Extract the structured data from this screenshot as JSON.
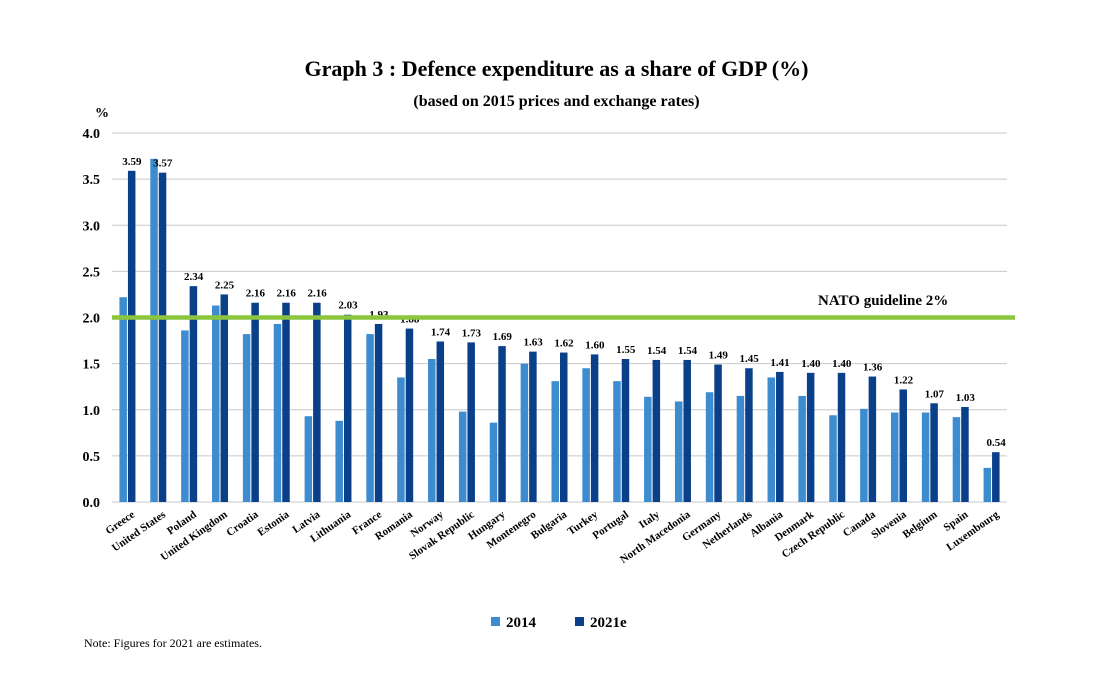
{
  "title": "Graph 3 : Defence expenditure as a share of GDP (%)",
  "subtitle": "(based on 2015 prices and exchange rates)",
  "note": "Note: Figures for 2021 are estimates.",
  "colors": {
    "series_2014": "#3d8cd0",
    "series_2021": "#0a3f8a",
    "guideline": "#8cc63f",
    "grid": "#c8c8c8"
  },
  "chart_data": {
    "type": "bar",
    "ylabel": "%",
    "ylim": [
      0,
      4
    ],
    "yticks": [
      "0.0",
      "0.5",
      "1.0",
      "1.5",
      "2.0",
      "2.5",
      "3.0",
      "3.5",
      "4.0"
    ],
    "grid": true,
    "legend_position": "bottom",
    "categories": [
      "Greece",
      "United States",
      "Poland",
      "United Kingdom",
      "Croatia",
      "Estonia",
      "Latvia",
      "Lithuania",
      "France",
      "Romania",
      "Norway",
      "Slovak Republic",
      "Hungary",
      "Montenegro",
      "Bulgaria",
      "Turkey",
      "Portugal",
      "Italy",
      "North Macedonia",
      "Germany",
      "Netherlands",
      "Albania",
      "Denmark",
      "Czech Republic",
      "Canada",
      "Slovenia",
      "Belgium",
      "Spain",
      "Luxembourg"
    ],
    "series": [
      {
        "name": "2014",
        "values": [
          2.22,
          3.72,
          1.86,
          2.13,
          1.82,
          1.93,
          0.93,
          0.88,
          1.82,
          1.35,
          1.55,
          0.98,
          0.86,
          1.5,
          1.31,
          1.45,
          1.31,
          1.14,
          1.09,
          1.19,
          1.15,
          1.35,
          1.15,
          0.94,
          1.01,
          0.97,
          0.97,
          0.92,
          0.37
        ]
      },
      {
        "name": "2021e",
        "values": [
          3.59,
          3.57,
          2.34,
          2.25,
          2.16,
          2.16,
          2.16,
          2.03,
          1.93,
          1.88,
          1.74,
          1.73,
          1.69,
          1.63,
          1.62,
          1.6,
          1.55,
          1.54,
          1.54,
          1.49,
          1.45,
          1.41,
          1.4,
          1.4,
          1.36,
          1.22,
          1.07,
          1.03,
          0.54
        ]
      }
    ],
    "data_labels_2021e": [
      "3.59",
      "3.57",
      "2.34",
      "2.25",
      "2.16",
      "2.16",
      "2.16",
      "2.03",
      "1.93",
      "1.88",
      "1.74",
      "1.73",
      "1.69",
      "1.63",
      "1.62",
      "1.60",
      "1.55",
      "1.54",
      "1.54",
      "1.49",
      "1.45",
      "1.41",
      "1.40",
      "1.40",
      "1.36",
      "1.22",
      "1.07",
      "1.03",
      "0.54"
    ],
    "guideline": {
      "label": "NATO guideline 2%",
      "value": 2.0
    }
  }
}
